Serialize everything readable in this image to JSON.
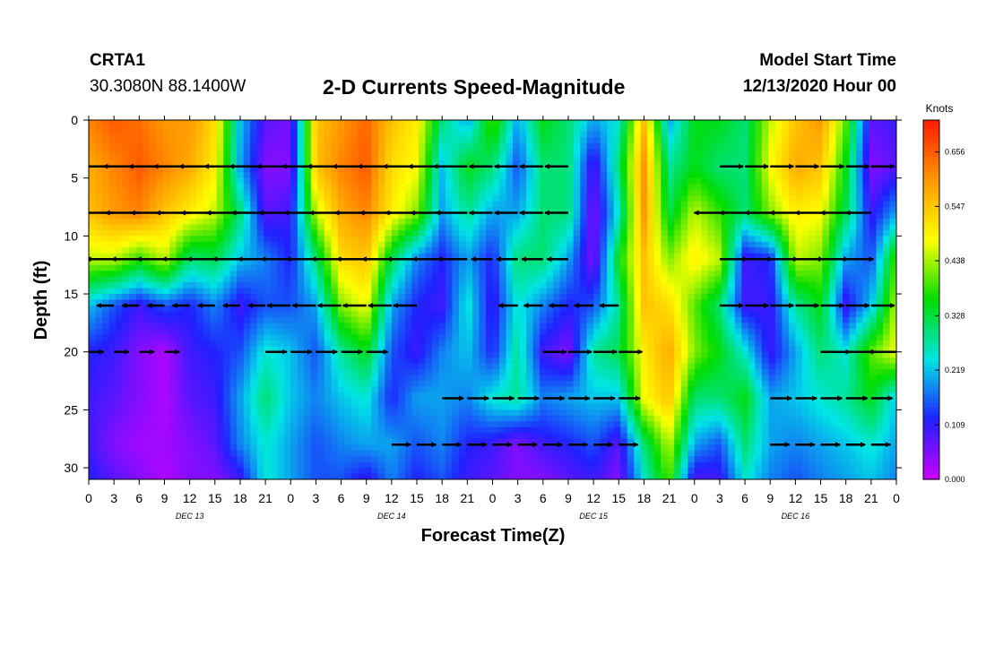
{
  "header": {
    "station": "CRTA1",
    "location": "30.3080N 88.1400W",
    "title": "2-D Currents Speed-Magnitude",
    "model_start_label": "Model Start Time",
    "model_start_value": "12/13/2020 Hour 00"
  },
  "chart_data": {
    "type": "heatmap",
    "title": "2-D Currents Speed-Magnitude",
    "xlabel": "Forecast Time(Z)",
    "ylabel": "Depth (ft)",
    "x_tick_labels": [
      "0",
      "3",
      "6",
      "9",
      "12",
      "15",
      "18",
      "21",
      "0",
      "3",
      "6",
      "9",
      "12",
      "15",
      "18",
      "21",
      "0",
      "3",
      "6",
      "9",
      "12",
      "15",
      "18",
      "21",
      "0",
      "3",
      "6",
      "9",
      "12",
      "15",
      "18",
      "21",
      "0"
    ],
    "x_range_hours": [
      0,
      96
    ],
    "day_labels": [
      {
        "text": "DEC 13",
        "hour": 12
      },
      {
        "text": "DEC 14",
        "hour": 36
      },
      {
        "text": "DEC 15",
        "hour": 60
      },
      {
        "text": "DEC 16",
        "hour": 84
      }
    ],
    "y_ticks": [
      0,
      5,
      10,
      15,
      20,
      25,
      30
    ],
    "ylim": [
      0,
      31
    ],
    "y_inverted": true,
    "colorbar": {
      "title": "Knots",
      "tick_labels": [
        "0.656",
        "0.547",
        "0.438",
        "0.328",
        "0.219",
        "0.109",
        "0.000"
      ],
      "tick_values": [
        0.656,
        0.547,
        0.438,
        0.328,
        0.219,
        0.109,
        0.0
      ],
      "range": [
        0.0,
        0.72
      ],
      "colors": [
        "#cc00ff",
        "#2020ff",
        "#00e5e5",
        "#00dd00",
        "#ffff00",
        "#ff9900",
        "#ff1a00"
      ]
    },
    "speed_grid": {
      "hours": [
        0,
        3,
        6,
        9,
        12,
        15,
        18,
        21,
        24,
        27,
        30,
        33,
        36,
        39,
        42,
        45,
        48,
        51,
        54,
        57,
        60,
        63,
        66,
        69,
        72,
        75,
        78,
        81,
        84,
        87,
        90,
        93,
        96
      ],
      "depths": [
        0,
        4,
        8,
        12,
        16,
        20,
        24,
        28,
        31
      ],
      "values": [
        [
          0.62,
          0.66,
          0.64,
          0.6,
          0.6,
          0.52,
          0.22,
          0.08,
          0.06,
          0.55,
          0.6,
          0.65,
          0.55,
          0.5,
          0.3,
          0.2,
          0.4,
          0.2,
          0.35,
          0.3,
          0.2,
          0.25,
          0.55,
          0.2,
          0.35,
          0.35,
          0.3,
          0.45,
          0.55,
          0.6,
          0.4,
          0.08,
          0.1
        ],
        [
          0.58,
          0.62,
          0.66,
          0.62,
          0.58,
          0.5,
          0.2,
          0.05,
          0.05,
          0.55,
          0.62,
          0.66,
          0.52,
          0.48,
          0.22,
          0.35,
          0.3,
          0.15,
          0.3,
          0.3,
          0.08,
          0.3,
          0.6,
          0.28,
          0.35,
          0.3,
          0.3,
          0.48,
          0.58,
          0.55,
          0.35,
          0.05,
          0.08
        ],
        [
          0.55,
          0.6,
          0.62,
          0.55,
          0.5,
          0.45,
          0.3,
          0.08,
          0.1,
          0.45,
          0.58,
          0.62,
          0.5,
          0.42,
          0.2,
          0.28,
          0.2,
          0.2,
          0.3,
          0.3,
          0.05,
          0.25,
          0.6,
          0.32,
          0.45,
          0.38,
          0.3,
          0.42,
          0.5,
          0.48,
          0.32,
          0.1,
          0.2
        ],
        [
          0.45,
          0.45,
          0.38,
          0.45,
          0.3,
          0.32,
          0.22,
          0.18,
          0.12,
          0.3,
          0.52,
          0.55,
          0.32,
          0.18,
          0.12,
          0.2,
          0.12,
          0.3,
          0.3,
          0.2,
          0.05,
          0.35,
          0.55,
          0.42,
          0.5,
          0.45,
          0.1,
          0.12,
          0.45,
          0.42,
          0.2,
          0.15,
          0.4
        ],
        [
          0.22,
          0.15,
          0.1,
          0.15,
          0.12,
          0.18,
          0.1,
          0.15,
          0.15,
          0.2,
          0.42,
          0.48,
          0.2,
          0.12,
          0.1,
          0.25,
          0.1,
          0.25,
          0.18,
          0.12,
          0.15,
          0.28,
          0.55,
          0.52,
          0.4,
          0.3,
          0.1,
          0.1,
          0.28,
          0.35,
          0.1,
          0.22,
          0.45
        ],
        [
          0.12,
          0.1,
          0.05,
          0.02,
          0.1,
          0.12,
          0.15,
          0.25,
          0.22,
          0.15,
          0.28,
          0.35,
          0.15,
          0.1,
          0.18,
          0.22,
          0.12,
          0.28,
          0.1,
          0.05,
          0.28,
          0.32,
          0.5,
          0.58,
          0.42,
          0.35,
          0.25,
          0.1,
          0.2,
          0.3,
          0.25,
          0.4,
          0.48
        ],
        [
          0.1,
          0.08,
          0.05,
          0.02,
          0.08,
          0.1,
          0.2,
          0.3,
          0.22,
          0.18,
          0.22,
          0.25,
          0.12,
          0.2,
          0.2,
          0.18,
          0.25,
          0.28,
          0.18,
          0.2,
          0.22,
          0.22,
          0.48,
          0.55,
          0.3,
          0.3,
          0.35,
          0.2,
          0.22,
          0.25,
          0.28,
          0.35,
          0.22
        ],
        [
          0.1,
          0.05,
          0.03,
          0.03,
          0.05,
          0.08,
          0.18,
          0.25,
          0.2,
          0.15,
          0.18,
          0.2,
          0.2,
          0.15,
          0.18,
          0.12,
          0.1,
          0.05,
          0.1,
          0.12,
          0.15,
          0.08,
          0.3,
          0.45,
          0.2,
          0.15,
          0.3,
          0.2,
          0.18,
          0.2,
          0.22,
          0.25,
          0.2
        ],
        [
          0.12,
          0.08,
          0.05,
          0.02,
          0.05,
          0.05,
          0.1,
          0.25,
          0.2,
          0.15,
          0.15,
          0.1,
          0.18,
          0.12,
          0.15,
          0.1,
          0.08,
          0.05,
          0.05,
          0.08,
          0.1,
          0.05,
          0.25,
          0.4,
          0.08,
          0.1,
          0.25,
          0.18,
          0.15,
          0.18,
          0.2,
          0.22,
          0.18
        ]
      ]
    },
    "vector_depths": [
      4,
      8,
      12,
      16,
      20,
      24,
      28
    ],
    "vectors": [
      {
        "depth": 4,
        "hour_start": 0,
        "hour_end": 21,
        "direction": "west",
        "speed_knots": 0.6
      },
      {
        "depth": 4,
        "hour_start": 24,
        "hour_end": 45,
        "direction": "west",
        "speed_knots": 0.55
      },
      {
        "depth": 4,
        "hour_start": 48,
        "hour_end": 57,
        "direction": "west",
        "speed_knots": 0.3
      },
      {
        "depth": 4,
        "hour_start": 75,
        "hour_end": 93,
        "direction": "east",
        "speed_knots": 0.3
      },
      {
        "depth": 8,
        "hour_start": 0,
        "hour_end": 21,
        "direction": "west",
        "speed_knots": 0.55
      },
      {
        "depth": 8,
        "hour_start": 24,
        "hour_end": 45,
        "direction": "west",
        "speed_knots": 0.5
      },
      {
        "depth": 8,
        "hour_start": 48,
        "hour_end": 57,
        "direction": "west",
        "speed_knots": 0.3
      },
      {
        "depth": 8,
        "hour_start": 75,
        "hour_end": 93,
        "direction": "west",
        "speed_knots": 0.35
      },
      {
        "depth": 12,
        "hour_start": 0,
        "hour_end": 21,
        "direction": "west",
        "speed_knots": 0.4
      },
      {
        "depth": 12,
        "hour_start": 24,
        "hour_end": 45,
        "direction": "west",
        "speed_knots": 0.45
      },
      {
        "depth": 12,
        "hour_start": 48,
        "hour_end": 57,
        "direction": "west",
        "speed_knots": 0.25
      },
      {
        "depth": 12,
        "hour_start": 75,
        "hour_end": 90,
        "direction": "east",
        "speed_knots": 0.4
      },
      {
        "depth": 16,
        "hour_start": 0,
        "hour_end": 21,
        "direction": "west",
        "speed_knots": 0.15
      },
      {
        "depth": 16,
        "hour_start": 24,
        "hour_end": 39,
        "direction": "west",
        "speed_knots": 0.3
      },
      {
        "depth": 16,
        "hour_start": 51,
        "hour_end": 63,
        "direction": "west",
        "speed_knots": 0.2
      },
      {
        "depth": 16,
        "hour_start": 75,
        "hour_end": 96,
        "direction": "east",
        "speed_knots": 0.3
      },
      {
        "depth": 20,
        "hour_start": 0,
        "hour_end": 9,
        "direction": "east",
        "speed_knots": 0.1
      },
      {
        "depth": 20,
        "hour_start": 21,
        "hour_end": 33,
        "direction": "east",
        "speed_knots": 0.25
      },
      {
        "depth": 20,
        "hour_start": 54,
        "hour_end": 63,
        "direction": "east",
        "speed_knots": 0.3
      },
      {
        "depth": 20,
        "hour_start": 87,
        "hour_end": 96,
        "direction": "east",
        "speed_knots": 0.45
      },
      {
        "depth": 24,
        "hour_start": 42,
        "hour_end": 63,
        "direction": "east",
        "speed_knots": 0.25
      },
      {
        "depth": 24,
        "hour_start": 81,
        "hour_end": 96,
        "direction": "east",
        "speed_knots": 0.25
      },
      {
        "depth": 28,
        "hour_start": 36,
        "hour_end": 63,
        "direction": "east",
        "speed_knots": 0.2
      },
      {
        "depth": 28,
        "hour_start": 81,
        "hour_end": 96,
        "direction": "east",
        "speed_knots": 0.2
      }
    ]
  }
}
